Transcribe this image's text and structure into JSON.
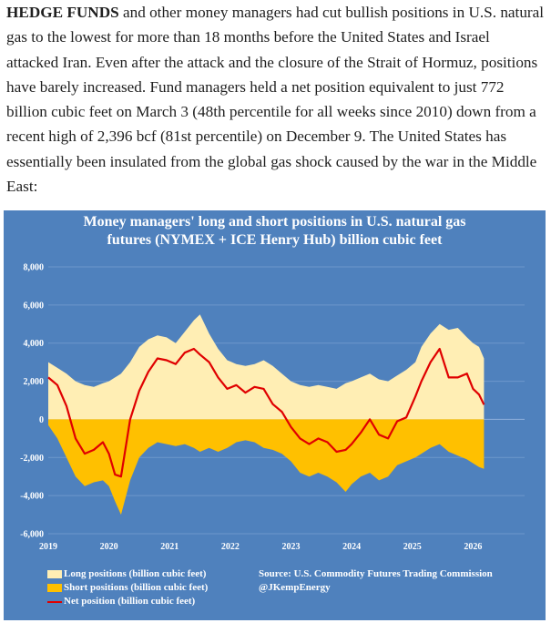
{
  "article": {
    "lead": "HEDGE FUNDS",
    "body": " and other money managers had cut bullish positions in U.S. natural gas to the lowest for more than 18 months before the United States and Israel attacked Iran. Even after the attack and the closure of the Strait of Hormuz, positions have barely increased. Fund managers held a net position equivalent to just 772 billion cubic feet on March 3 (48th percentile for all weeks since 2010) down from a recent high of 2,396 bcf (81st percentile) on December 9. The United States has essentially been insulated from the global gas shock caused by the war in the Middle East:"
  },
  "colors": {
    "background": "#4f81bd",
    "long": "#ffeeb4",
    "short": "#ffc000",
    "net": "#e00000",
    "grid": "#6d97cc",
    "text": "#ffffff"
  },
  "chart_data": {
    "type": "area",
    "title_line1": "Money managers' long and short positions in U.S. natural gas",
    "title_line2": "futures (NYMEX + ICE Henry Hub) billion cubic feet",
    "ylim": [
      -6000,
      8000
    ],
    "yticks": [
      8000,
      6000,
      4000,
      2000,
      0,
      -2000,
      -4000,
      -6000
    ],
    "ytick_labels": [
      "8,000",
      "6,000",
      "4,000",
      "2,000",
      "0",
      "-2,000",
      "-4,000",
      "-6,000"
    ],
    "xlim": [
      2019.0,
      2026.85
    ],
    "xticks": [
      2019,
      2020,
      2021,
      2022,
      2023,
      2024,
      2025,
      2026
    ],
    "xtick_labels": [
      "2019",
      "2020",
      "2021",
      "2022",
      "2023",
      "2024",
      "2025",
      "2026"
    ],
    "grid": true,
    "x": [
      2019.0,
      2019.15,
      2019.3,
      2019.45,
      2019.6,
      2019.75,
      2019.9,
      2020.0,
      2020.1,
      2020.2,
      2020.35,
      2020.5,
      2020.65,
      2020.8,
      2020.95,
      2021.1,
      2021.25,
      2021.4,
      2021.5,
      2021.65,
      2021.8,
      2021.95,
      2022.1,
      2022.25,
      2022.4,
      2022.55,
      2022.7,
      2022.85,
      2023.0,
      2023.15,
      2023.3,
      2023.45,
      2023.6,
      2023.75,
      2023.9,
      2024.0,
      2024.15,
      2024.3,
      2024.45,
      2024.6,
      2024.75,
      2024.9,
      2025.05,
      2025.15,
      2025.3,
      2025.45,
      2025.6,
      2025.75,
      2025.9,
      2026.0,
      2026.1,
      2026.18
    ],
    "series": [
      {
        "name": "Long positions (billion cubic feet)",
        "values": [
          3000,
          2700,
          2400,
          2000,
          1800,
          1700,
          1900,
          2000,
          2200,
          2400,
          3000,
          3800,
          4200,
          4400,
          4300,
          4000,
          4600,
          5200,
          5500,
          4500,
          3700,
          3100,
          2900,
          2800,
          2900,
          3100,
          2800,
          2400,
          2000,
          1800,
          1700,
          1800,
          1700,
          1600,
          1900,
          2000,
          2200,
          2400,
          2100,
          2000,
          2300,
          2600,
          3000,
          3800,
          4500,
          5000,
          4700,
          4800,
          4300,
          4000,
          3800,
          3200
        ]
      },
      {
        "name": "Short positions (billion cubic feet)",
        "values": [
          -300,
          -1000,
          -2000,
          -3000,
          -3500,
          -3300,
          -3200,
          -3500,
          -4300,
          -5000,
          -3200,
          -2000,
          -1500,
          -1200,
          -1300,
          -1400,
          -1300,
          -1500,
          -1700,
          -1500,
          -1700,
          -1500,
          -1200,
          -1100,
          -1200,
          -1500,
          -1600,
          -1800,
          -2200,
          -2800,
          -3000,
          -2800,
          -3000,
          -3300,
          -3800,
          -3400,
          -3000,
          -2800,
          -3200,
          -3000,
          -2400,
          -2200,
          -2000,
          -1800,
          -1500,
          -1300,
          -1700,
          -1900,
          -2100,
          -2300,
          -2500,
          -2600
        ]
      },
      {
        "name": "Net position (billion cubic feet)",
        "values": [
          2200,
          1800,
          700,
          -1000,
          -1800,
          -1600,
          -1200,
          -1800,
          -2900,
          -3000,
          0,
          1500,
          2500,
          3200,
          3100,
          2900,
          3500,
          3700,
          3400,
          3000,
          2200,
          1600,
          1800,
          1400,
          1700,
          1600,
          800,
          400,
          -400,
          -1000,
          -1300,
          -1000,
          -1200,
          -1700,
          -1600,
          -1300,
          -700,
          0,
          -800,
          -1000,
          -100,
          100,
          1200,
          2000,
          3000,
          3700,
          2200,
          2200,
          2400,
          1600,
          1300,
          772
        ]
      }
    ],
    "legend": [
      {
        "label": "Long positions (billion cubic feet)",
        "note": "Source: U.S. Commodity Futures Trading Commission"
      },
      {
        "label": "Short positions (billion cubic feet)",
        "note": "@JKempEnergy"
      },
      {
        "label": "Net position (billion cubic feet)",
        "note": ""
      }
    ]
  }
}
